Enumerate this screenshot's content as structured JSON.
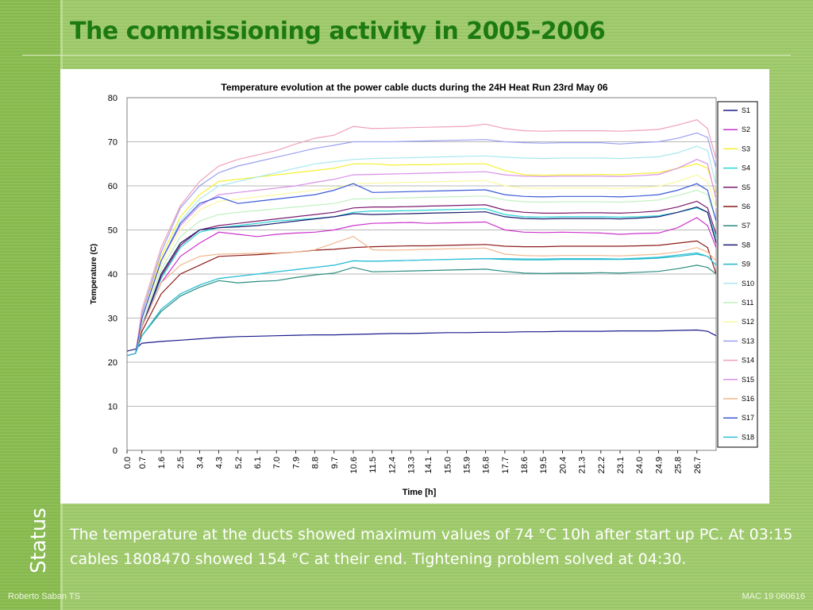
{
  "slide": {
    "title": "The commissioning activity in 2005-2006",
    "side_label": "Status",
    "body_text": "The temperature at the ducts showed maximum values of 74 °C 10h after start up PC. At 03:15 cables 1808470 showed 154 °C at their end. Tightening problem solved at 04:30.",
    "footer_left": "Roberto Saban TS",
    "footer_right": "MAC 19  060616"
  },
  "colors": {
    "title": "#1d7a12",
    "background_green": "#a4cd72"
  },
  "chart_data": {
    "type": "line",
    "title": "Temperature evolution at the power cable ducts during the 24H Heat Run 23rd May 06",
    "xlabel": "Time [h]",
    "ylabel": "Temperature (C)",
    "ylim": [
      0,
      80
    ],
    "xlim": [
      0,
      27.6
    ],
    "y_ticks": [
      "0",
      "10",
      "20",
      "30",
      "40",
      "50",
      "60",
      "70",
      "80"
    ],
    "x_ticks": [
      "0.0",
      "0.7",
      "1.6",
      "2.5",
      "3.4",
      "4.3",
      "5.2",
      "6.1",
      "7.0",
      "7.9",
      "8.8",
      "9.7",
      "10.6",
      "11.5",
      "12.4",
      "13.3",
      "14.1",
      "15.0",
      "15.9",
      "16.8",
      "17.7",
      "18.6",
      "19.5",
      "20.4",
      "21.3",
      "22.2",
      "23.1",
      "24.0",
      "24.9",
      "25.8",
      "26.7"
    ],
    "grid": "horizontal",
    "legend_position": "right",
    "x": [
      0,
      0.4,
      0.7,
      1.6,
      2.5,
      3.4,
      4.3,
      5.2,
      6.1,
      7.0,
      7.9,
      8.8,
      9.7,
      10.6,
      11.5,
      12.4,
      13.3,
      14.1,
      15.0,
      15.9,
      16.8,
      17.7,
      18.6,
      19.5,
      20.4,
      21.3,
      22.2,
      23.1,
      24.0,
      24.9,
      25.8,
      26.7,
      27.2,
      27.6
    ],
    "series": [
      {
        "name": "S1",
        "color": "#1a1a8c",
        "values": [
          22.5,
          23,
          24.3,
          24.7,
          25,
          25.3,
          25.6,
          25.8,
          25.9,
          26,
          26.1,
          26.2,
          26.2,
          26.3,
          26.4,
          26.5,
          26.5,
          26.6,
          26.7,
          26.7,
          26.8,
          26.8,
          26.9,
          26.9,
          27,
          27,
          27,
          27.1,
          27.1,
          27.1,
          27.2,
          27.3,
          27.0,
          26.0
        ]
      },
      {
        "name": "S2",
        "color": "#cc33cc",
        "values": [
          21.5,
          22,
          28,
          38,
          44,
          47,
          49.5,
          49,
          48.5,
          49,
          49.3,
          49.5,
          50,
          51,
          51.5,
          51.6,
          51.7,
          51.5,
          51.6,
          51.7,
          51.8,
          50,
          49.5,
          49.4,
          49.5,
          49.4,
          49.3,
          49,
          49.2,
          49.3,
          50.5,
          52.8,
          51,
          46
        ]
      },
      {
        "name": "S3",
        "color": "#f5f030",
        "values": [
          21.5,
          22,
          31,
          44,
          53,
          58,
          61,
          61.5,
          62,
          62.5,
          63,
          63.5,
          64,
          65,
          65,
          64.7,
          64.8,
          64.8,
          64.9,
          65,
          65,
          63.5,
          62.5,
          62.4,
          62.5,
          62.5,
          62.6,
          62.5,
          62.8,
          63,
          64,
          65,
          64,
          58
        ]
      },
      {
        "name": "S4",
        "color": "#2ad4d4",
        "values": [
          21.5,
          22,
          28,
          39,
          46,
          49.5,
          50.5,
          51,
          51.5,
          52,
          52.3,
          52.6,
          53,
          54,
          54.3,
          54.3,
          54.4,
          54.5,
          54.6,
          54.7,
          54.8,
          53.5,
          53,
          52.9,
          53,
          53,
          53,
          52.9,
          53,
          53.2,
          54,
          55,
          54,
          48
        ]
      },
      {
        "name": "S5",
        "color": "#7a1a6e",
        "values": [
          21.5,
          22,
          28,
          39.5,
          46.5,
          50,
          51,
          51.5,
          52,
          52.5,
          53,
          53.5,
          54,
          55,
          55.2,
          55.2,
          55.3,
          55.4,
          55.5,
          55.6,
          55.7,
          54.5,
          54,
          53.8,
          53.8,
          53.9,
          53.9,
          53.8,
          54,
          54.3,
          55.2,
          56.5,
          55,
          49
        ]
      },
      {
        "name": "S6",
        "color": "#8c1a1a",
        "values": [
          21.5,
          22,
          27,
          35.5,
          40,
          42,
          44,
          44.2,
          44.4,
          44.7,
          45,
          45.4,
          45.6,
          46,
          46.2,
          46.3,
          46.4,
          46.4,
          46.5,
          46.6,
          46.7,
          46.3,
          46.2,
          46.2,
          46.3,
          46.3,
          46.3,
          46.3,
          46.4,
          46.5,
          47,
          47.5,
          46,
          40
        ]
      },
      {
        "name": "S7",
        "color": "#2a8c80",
        "values": [
          21.5,
          22,
          26,
          31.5,
          35,
          37,
          38.5,
          38,
          38.3,
          38.5,
          39.2,
          39.8,
          40.2,
          41.5,
          40.5,
          40.6,
          40.7,
          40.8,
          40.9,
          41,
          41.1,
          40.6,
          40.2,
          40.1,
          40.2,
          40.2,
          40.3,
          40.2,
          40.4,
          40.6,
          41.2,
          42,
          41.5,
          40
        ]
      },
      {
        "name": "S8",
        "color": "#1a1a6e",
        "values": [
          21.5,
          22,
          28,
          40,
          47,
          50,
          50.5,
          50.7,
          51,
          51.5,
          52,
          52.5,
          53,
          53.7,
          53.5,
          53.6,
          53.7,
          53.8,
          53.9,
          54,
          54.1,
          53,
          52.6,
          52.5,
          52.6,
          52.6,
          52.6,
          52.5,
          52.7,
          53,
          54,
          55.2,
          54,
          47
        ]
      },
      {
        "name": "S9",
        "color": "#22b8c8",
        "values": [
          21.5,
          22,
          26,
          32,
          35.5,
          37.5,
          39,
          39.5,
          40,
          40.5,
          41,
          41.5,
          42,
          43,
          42.9,
          43,
          43.1,
          43.2,
          43.3,
          43.4,
          43.5,
          43.3,
          43.2,
          43.2,
          43.3,
          43.3,
          43.3,
          43.3,
          43.4,
          43.6,
          44,
          44.5,
          44,
          42
        ]
      },
      {
        "name": "S10",
        "color": "#a8e8f0",
        "values": [
          21.5,
          22,
          30,
          43,
          52,
          57,
          60,
          61,
          62,
          63,
          64,
          65,
          65.5,
          66,
          66.2,
          66.3,
          66.4,
          66.5,
          66.6,
          66.7,
          66.8,
          66.5,
          66.3,
          66.2,
          66.3,
          66.3,
          66.3,
          66.2,
          66.4,
          66.6,
          67.5,
          69,
          68,
          60
        ]
      },
      {
        "name": "S11",
        "color": "#c0f0c0",
        "values": [
          21.5,
          22,
          29,
          41,
          48.5,
          52,
          53.5,
          54,
          54.4,
          54.8,
          55.2,
          55.6,
          56,
          57,
          57.1,
          57.2,
          57.3,
          57.4,
          57.5,
          57.6,
          57.7,
          56.8,
          56.4,
          56.3,
          56.4,
          56.4,
          56.4,
          56.3,
          56.5,
          56.8,
          57.8,
          59,
          58,
          52
        ]
      },
      {
        "name": "S12",
        "color": "#f8f8a0",
        "values": [
          21.5,
          22,
          30,
          42,
          50,
          54.5,
          56.5,
          57,
          57.5,
          58,
          58.5,
          59,
          59.5,
          60.5,
          60.6,
          60.7,
          60.8,
          60.9,
          61,
          61.1,
          61.2,
          60,
          59.5,
          59.4,
          59.5,
          59.5,
          59.5,
          59.4,
          59.6,
          59.9,
          61,
          62.5,
          61,
          55
        ]
      },
      {
        "name": "S13",
        "color": "#9aa0f0",
        "values": [
          21.5,
          22,
          31,
          45,
          55,
          60,
          63,
          64.5,
          65.5,
          66.5,
          67.5,
          68.5,
          69.2,
          70,
          70,
          70,
          70.1,
          70.2,
          70.3,
          70.4,
          70.5,
          70,
          69.8,
          69.7,
          69.8,
          69.8,
          69.8,
          69.5,
          69.8,
          70,
          70.8,
          72,
          71,
          64
        ]
      },
      {
        "name": "S14",
        "color": "#f0a0b8",
        "values": [
          21.5,
          22,
          32,
          46,
          55.5,
          61,
          64.5,
          66,
          67,
          68,
          69.5,
          70.8,
          71.5,
          73.5,
          73,
          73.1,
          73.2,
          73.3,
          73.4,
          73.5,
          74,
          73,
          72.5,
          72.4,
          72.5,
          72.5,
          72.5,
          72.4,
          72.6,
          72.8,
          73.8,
          75,
          73,
          66
        ]
      },
      {
        "name": "S15",
        "color": "#d890e8",
        "values": [
          21.5,
          22,
          30,
          43,
          51,
          55.5,
          58,
          58.5,
          59,
          59.5,
          60,
          60.8,
          61.5,
          62.5,
          62.6,
          62.7,
          62.8,
          62.9,
          63,
          63.1,
          63.2,
          62.5,
          62.2,
          62.1,
          62.2,
          62.2,
          62.2,
          62.1,
          62.3,
          62.6,
          64,
          66,
          65,
          57
        ]
      },
      {
        "name": "S16",
        "color": "#f0b890",
        "values": [
          21.5,
          22,
          28,
          38,
          42,
          44,
          44.5,
          44.6,
          44.7,
          44.8,
          45,
          45.5,
          47,
          48.5,
          45.5,
          45.4,
          45.5,
          45.6,
          45.7,
          45.8,
          45.9,
          44.5,
          44.2,
          44.1,
          44.2,
          44.2,
          44.2,
          44.1,
          44.3,
          44.5,
          45,
          46,
          45,
          43
        ]
      },
      {
        "name": "S17",
        "color": "#3a5ad8",
        "values": [
          21.5,
          22,
          30,
          43,
          51.5,
          56,
          57.5,
          56,
          56.5,
          57,
          57.5,
          58,
          59,
          60.5,
          58.5,
          58.6,
          58.7,
          58.8,
          58.9,
          59,
          59.1,
          58,
          57.6,
          57.5,
          57.6,
          57.6,
          57.6,
          57.5,
          57.7,
          58,
          59,
          60.5,
          59,
          52
        ]
      },
      {
        "name": "S18",
        "color": "#30c0d8",
        "values": [
          21.5,
          22,
          26,
          32,
          35.5,
          37.5,
          39,
          39.5,
          40,
          40.5,
          41,
          41.5,
          42,
          43,
          42.9,
          43,
          43.1,
          43.2,
          43.3,
          43.4,
          43.5,
          43.5,
          43.4,
          43.4,
          43.5,
          43.5,
          43.5,
          43.4,
          43.6,
          43.8,
          44.3,
          44.8,
          44,
          42
        ]
      }
    ]
  }
}
